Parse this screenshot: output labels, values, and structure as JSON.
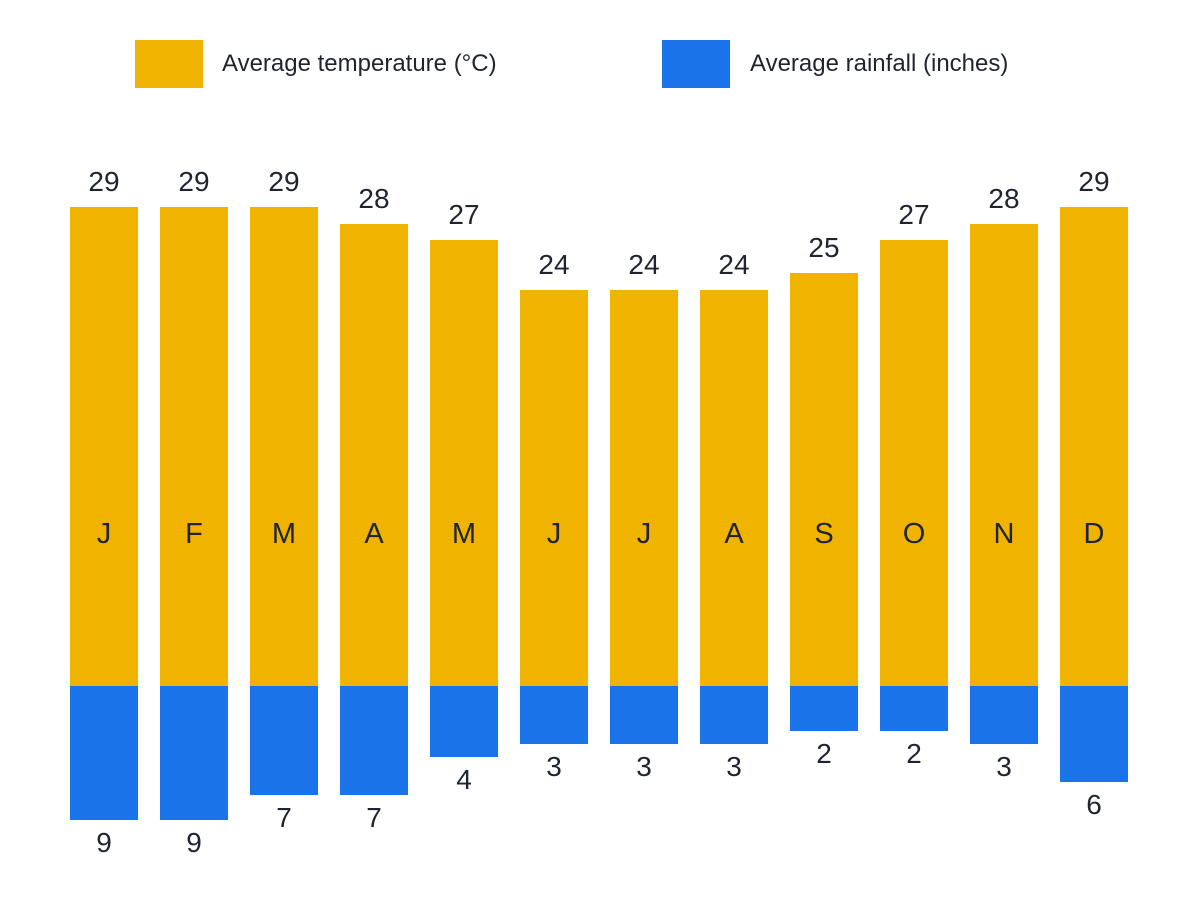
{
  "legend": {
    "temperature_label": "Average temperature (°C)",
    "rainfall_label": "Average rainfall (inches)"
  },
  "colors": {
    "temperature": "#F0B400",
    "rainfall": "#1A73E8",
    "text": "#1f2430",
    "background": "#ffffff"
  },
  "chart_data": {
    "type": "bar",
    "subtype": "diverging-vertical",
    "title": "",
    "categories": [
      "J",
      "F",
      "M",
      "A",
      "M",
      "J",
      "J",
      "A",
      "S",
      "O",
      "N",
      "D"
    ],
    "series": [
      {
        "name": "Average temperature (°C)",
        "direction": "up",
        "color": "#F0B400",
        "values": [
          29,
          29,
          29,
          28,
          27,
          24,
          24,
          24,
          25,
          27,
          28,
          29
        ]
      },
      {
        "name": "Average rainfall (inches)",
        "direction": "down",
        "color": "#1A73E8",
        "values": [
          9,
          9,
          7,
          7,
          4,
          3,
          3,
          3,
          2,
          2,
          3,
          6
        ]
      }
    ],
    "xlabel": "",
    "ylabel": "",
    "axis_visible": false,
    "grid": false,
    "data_labels": true,
    "legend_position": "top"
  }
}
